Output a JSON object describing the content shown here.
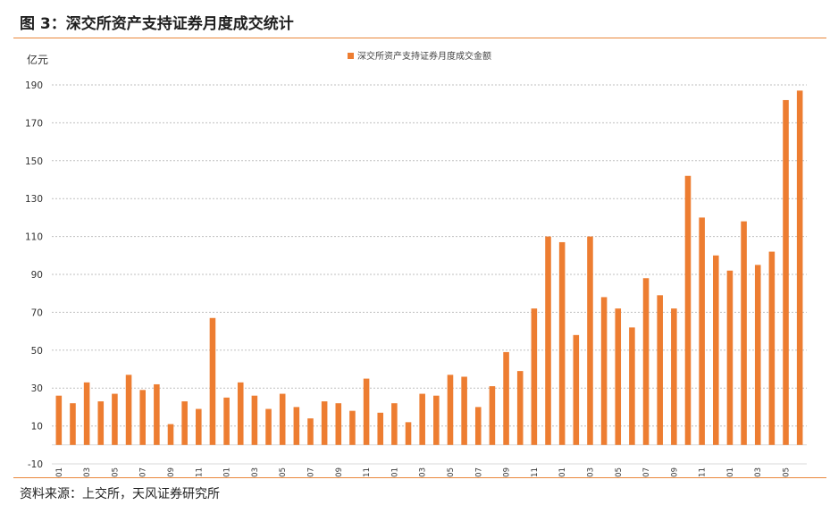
{
  "figure_title": "图 3：深交所资产支持证券月度成交统计",
  "source": "资料来源：上交所，天风证券研究所",
  "colors": {
    "bar": "#ED7D31",
    "rule": "#E9873A",
    "grid": "#BFBFBF"
  },
  "chart_data": {
    "type": "bar",
    "title": "",
    "ylabel": "亿元",
    "ylim": [
      -10,
      190
    ],
    "yticks": [
      -10,
      10,
      30,
      50,
      70,
      90,
      110,
      130,
      150,
      170,
      190
    ],
    "grid": true,
    "legend_position": "top-center",
    "tick_labels": [
      "16/01",
      "16/03",
      "16/05",
      "16/07",
      "16/09",
      "16/11",
      "17/01",
      "17/03",
      "17/05",
      "17/07",
      "17/09",
      "17/11",
      "18/01",
      "18/03",
      "18/05",
      "18/07",
      "18/09",
      "18/11",
      "19/01",
      "19/03",
      "19/05",
      "19/07",
      "19/09",
      "19/11",
      "20/01",
      "20/03",
      "20/05"
    ],
    "categories": [
      "16/01",
      "16/02",
      "16/03",
      "16/04",
      "16/05",
      "16/06",
      "16/07",
      "16/08",
      "16/09",
      "16/10",
      "16/11",
      "16/12",
      "17/01",
      "17/02",
      "17/03",
      "17/04",
      "17/05",
      "17/06",
      "17/07",
      "17/08",
      "17/09",
      "17/10",
      "17/11",
      "17/12",
      "18/01",
      "18/02",
      "18/03",
      "18/04",
      "18/05",
      "18/06",
      "18/07",
      "18/08",
      "18/09",
      "18/10",
      "18/11",
      "18/12",
      "19/01",
      "19/02",
      "19/03",
      "19/04",
      "19/05",
      "19/06",
      "19/07",
      "19/08",
      "19/09",
      "19/10",
      "19/11",
      "19/12",
      "20/01",
      "20/02",
      "20/03",
      "20/04",
      "20/05",
      "20/06"
    ],
    "series": [
      {
        "name": "深交所资产支持证券月度成交金额",
        "values": [
          26,
          22,
          33,
          23,
          27,
          37,
          29,
          32,
          11,
          23,
          19,
          67,
          25,
          33,
          26,
          19,
          27,
          20,
          14,
          23,
          22,
          18,
          35,
          17,
          22,
          12,
          27,
          26,
          37,
          36,
          20,
          31,
          49,
          39,
          72,
          110,
          107,
          58,
          110,
          78,
          72,
          62,
          88,
          79,
          72,
          142,
          120,
          100,
          92,
          118,
          95,
          102,
          182,
          187
        ]
      }
    ]
  }
}
